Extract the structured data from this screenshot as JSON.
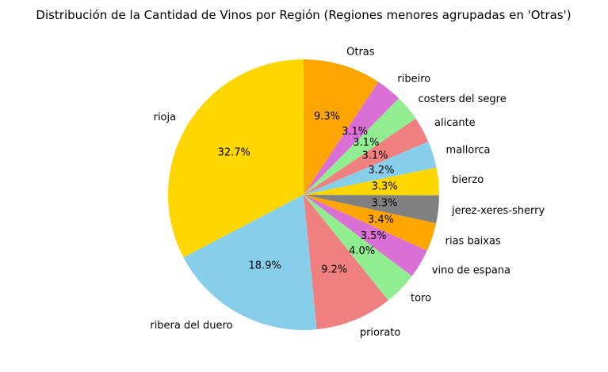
{
  "chart_data": {
    "type": "pie",
    "title": "Distribución de la Cantidad de Vinos por Región (Regiones menores agrupadas en 'Otras')",
    "start_angle_deg": 90,
    "direction": "counterclockwise",
    "slices": [
      {
        "label": "rioja",
        "value": 32.7,
        "pct_label": "32.7%",
        "color": "#FFD700"
      },
      {
        "label": "ribera del duero",
        "value": 18.9,
        "pct_label": "18.9%",
        "color": "#87CEEB"
      },
      {
        "label": "priorato",
        "value": 9.2,
        "pct_label": "9.2%",
        "color": "#F08080"
      },
      {
        "label": "toro",
        "value": 4.0,
        "pct_label": "4.0%",
        "color": "#90EE90"
      },
      {
        "label": "vino de espana",
        "value": 3.5,
        "pct_label": "3.5%",
        "color": "#DA70D6"
      },
      {
        "label": "rias baixas",
        "value": 3.4,
        "pct_label": "3.4%",
        "color": "#FFA500"
      },
      {
        "label": "jerez-xeres-sherry",
        "value": 3.3,
        "pct_label": "3.3%",
        "color": "#808080"
      },
      {
        "label": "bierzo",
        "value": 3.3,
        "pct_label": "3.3%",
        "color": "#FFD700"
      },
      {
        "label": "mallorca",
        "value": 3.2,
        "pct_label": "3.2%",
        "color": "#87CEEB"
      },
      {
        "label": "alicante",
        "value": 3.1,
        "pct_label": "3.1%",
        "color": "#F08080"
      },
      {
        "label": "costers del segre",
        "value": 3.1,
        "pct_label": "3.1%",
        "color": "#90EE90"
      },
      {
        "label": "ribeiro",
        "value": 3.1,
        "pct_label": "3.1%",
        "color": "#DA70D6"
      },
      {
        "label": "Otras",
        "value": 9.3,
        "pct_label": "9.3%",
        "color": "#FFA500"
      }
    ]
  }
}
